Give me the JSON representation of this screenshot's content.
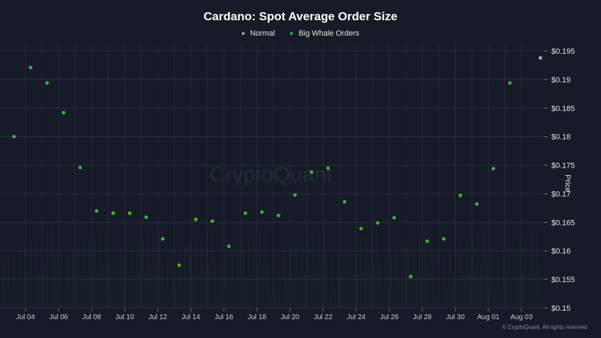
{
  "chart_data": {
    "type": "scatter",
    "title": "Cardano: Spot Average Order Size",
    "ylabel": "Price",
    "ylim": [
      0.15,
      0.195
    ],
    "y_ticks": [
      "$0.195",
      "$0.19",
      "$0.185",
      "$0.18",
      "$0.175",
      "$0.17",
      "$0.165",
      "$0.16",
      "$0.155",
      "$0.15"
    ],
    "y_tick_values": [
      0.195,
      0.19,
      0.185,
      0.18,
      0.175,
      0.17,
      0.165,
      0.16,
      0.155,
      0.15
    ],
    "x_ticks": [
      "Jul 04",
      "Jul 06",
      "Jul 08",
      "Jul 10",
      "Jul 12",
      "Jul 14",
      "Jul 16",
      "Jul 18",
      "Jul 20",
      "Jul 22",
      "Jul 24",
      "Jul 26",
      "Jul 28",
      "Jul 30",
      "Aug 01",
      "Aug 03"
    ],
    "x_tick_days": [
      4,
      6,
      8,
      10,
      12,
      14,
      16,
      18,
      20,
      22,
      24,
      26,
      28,
      30,
      32,
      34
    ],
    "x_range_days": [
      3.3,
      34.5
    ],
    "legend_position": "top-center",
    "grid": true,
    "series": [
      {
        "name": "Normal",
        "color": "#a9adb5",
        "points": [
          {
            "day": 34.3,
            "y": 0.1938
          }
        ]
      },
      {
        "name": "Big Whale Orders",
        "color": "#3fae3a",
        "points": [
          {
            "day": 3.3,
            "y": 0.18
          },
          {
            "day": 4.3,
            "y": 0.1921
          },
          {
            "day": 5.3,
            "y": 0.1894
          },
          {
            "day": 6.3,
            "y": 0.1842
          },
          {
            "day": 7.3,
            "y": 0.1746
          },
          {
            "day": 8.3,
            "y": 0.167
          },
          {
            "day": 9.3,
            "y": 0.1666
          },
          {
            "day": 10.3,
            "y": 0.1666
          },
          {
            "day": 11.3,
            "y": 0.1659
          },
          {
            "day": 12.3,
            "y": 0.1621
          },
          {
            "day": 13.3,
            "y": 0.1575
          },
          {
            "day": 14.3,
            "y": 0.1655
          },
          {
            "day": 15.3,
            "y": 0.1652
          },
          {
            "day": 16.3,
            "y": 0.1608
          },
          {
            "day": 17.3,
            "y": 0.1666
          },
          {
            "day": 18.3,
            "y": 0.1668
          },
          {
            "day": 19.3,
            "y": 0.1662
          },
          {
            "day": 20.3,
            "y": 0.1698
          },
          {
            "day": 21.3,
            "y": 0.1738
          },
          {
            "day": 22.3,
            "y": 0.1745
          },
          {
            "day": 23.3,
            "y": 0.1686
          },
          {
            "day": 24.3,
            "y": 0.1639
          },
          {
            "day": 25.3,
            "y": 0.1649
          },
          {
            "day": 26.3,
            "y": 0.1658
          },
          {
            "day": 27.3,
            "y": 0.1555
          },
          {
            "day": 28.3,
            "y": 0.1617
          },
          {
            "day": 29.3,
            "y": 0.1621
          },
          {
            "day": 30.3,
            "y": 0.1697
          },
          {
            "day": 31.3,
            "y": 0.1682
          },
          {
            "day": 32.3,
            "y": 0.1744
          },
          {
            "day": 33.3,
            "y": 0.1894
          }
        ]
      }
    ],
    "watermark": "CryptoQuant",
    "copyright": "© CryptoQuant. All rights reserved"
  }
}
